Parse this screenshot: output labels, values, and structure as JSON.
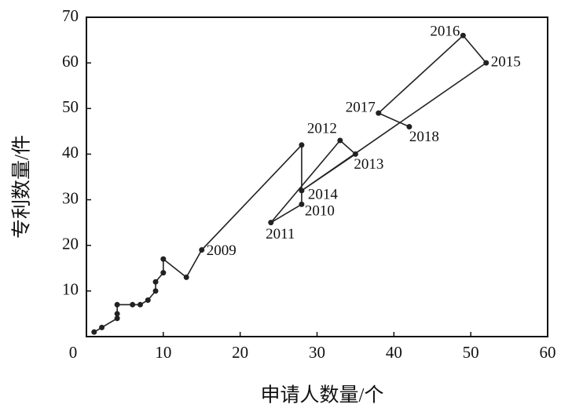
{
  "chart_data": {
    "type": "scatter",
    "x_label": "申请人数量/个",
    "y_label": "专利数量/件",
    "x": [
      1,
      2,
      4,
      4,
      4,
      6,
      7,
      8,
      9,
      9,
      10,
      10,
      13,
      15,
      28,
      28,
      24,
      33,
      35,
      28,
      52,
      49,
      38,
      42
    ],
    "values": [
      1,
      2,
      4,
      5,
      7,
      7,
      7,
      8,
      10,
      12,
      14,
      17,
      13,
      19,
      42,
      29,
      25,
      43,
      40,
      32,
      60,
      66,
      49,
      46
    ],
    "point_labels": [
      null,
      null,
      null,
      null,
      null,
      null,
      null,
      null,
      null,
      null,
      null,
      null,
      null,
      "2009",
      null,
      "2010",
      "2011",
      "2012",
      "2013",
      "2014",
      "2015",
      "2016",
      "2017",
      "2018"
    ],
    "color": "#222222",
    "connected": true,
    "xlim": [
      0,
      60
    ],
    "ylim": [
      0,
      70
    ],
    "xticks": [
      0,
      10,
      20,
      30,
      40,
      50,
      60
    ],
    "yticks": [
      10,
      20,
      30,
      40,
      50,
      60,
      70
    ]
  }
}
